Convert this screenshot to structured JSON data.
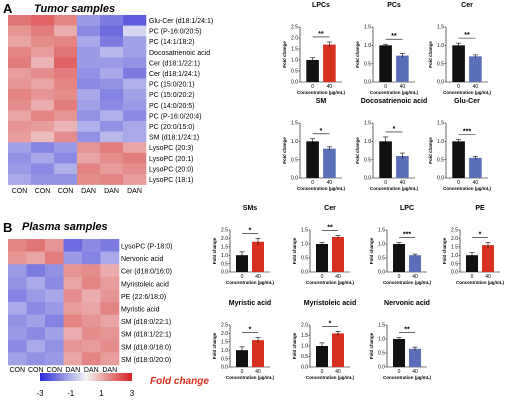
{
  "panelA": {
    "letter": "A",
    "title": "Tumor samples",
    "heatmap": {
      "rows": [
        "Glu-Cer (d18:1/24:1)",
        "PC (P-16:0/20:5)",
        "PC (14:1/18:2)",
        "Docosatrienoic acid",
        "Cer (d18:1/22:1)",
        "Cer (d18:1/24:1)",
        "PC (15:0/20:1)",
        "PC (15:0/20:2)",
        "PC (14:0/20:5)",
        "PC (P-16:0/20:4)",
        "PC (20:0/15:0)",
        "SM (d18:1/24:1)",
        "LysoPC (20:3)",
        "LysoPC (20:1)",
        "LysoPC (20:0)",
        "LysoPC (18:1)"
      ],
      "columns": [
        "CON",
        "CON",
        "CON",
        "DAN",
        "DAN",
        "DAN"
      ],
      "values": [
        [
          1.6,
          1.8,
          1.4,
          -1.2,
          -1.6,
          -2.0
        ],
        [
          1.2,
          1.5,
          0.9,
          -1.4,
          -1.8,
          -0.4
        ],
        [
          1.0,
          1.3,
          1.4,
          -1.0,
          -1.6,
          -1.1
        ],
        [
          1.4,
          1.1,
          1.6,
          -1.2,
          -0.8,
          -1.1
        ],
        [
          1.5,
          0.8,
          1.8,
          -1.2,
          -1.2,
          -1.3
        ],
        [
          1.1,
          1.3,
          1.5,
          -1.3,
          -1.0,
          -1.6
        ],
        [
          1.2,
          1.0,
          1.4,
          -1.4,
          -1.3,
          -0.9
        ],
        [
          1.4,
          1.2,
          1.3,
          -1.0,
          -1.5,
          -1.1
        ],
        [
          1.3,
          0.9,
          1.5,
          -1.1,
          -1.4,
          -1.2
        ],
        [
          1.0,
          1.4,
          1.2,
          -1.3,
          -0.9,
          -1.4
        ],
        [
          1.2,
          1.1,
          0.8,
          -0.9,
          -1.3,
          -1.0
        ],
        [
          1.1,
          0.7,
          1.3,
          -1.3,
          -0.8,
          -1.0
        ],
        [
          -1.1,
          -1.5,
          -1.2,
          1.2,
          1.5,
          1.0
        ],
        [
          -1.3,
          -1.0,
          -1.4,
          1.0,
          1.3,
          1.5
        ],
        [
          -1.2,
          -1.4,
          -0.9,
          1.4,
          1.1,
          1.3
        ],
        [
          -1.0,
          -1.3,
          -1.3,
          1.3,
          1.4,
          1.1
        ]
      ]
    },
    "bars": [
      {
        "title": "LPCs",
        "ctrl": 1.0,
        "ctrl_err": 0.1,
        "treat": 1.7,
        "treat_err": 0.12,
        "ymax": 2.5,
        "ticks": [
          "0.0",
          "0.5",
          "1.0",
          "1.5",
          "2.0",
          "2.5"
        ],
        "sig": "**",
        "treat_color": "#d7301f"
      },
      {
        "title": "PCs",
        "ctrl": 1.0,
        "ctrl_err": 0.03,
        "treat": 0.72,
        "treat_err": 0.06,
        "ymax": 1.5,
        "ticks": [
          "0.0",
          "0.5",
          "1.0",
          "1.5"
        ],
        "sig": "**",
        "treat_color": "#5b6fb8"
      },
      {
        "title": "Cer",
        "ctrl": 1.0,
        "ctrl_err": 0.06,
        "treat": 0.7,
        "treat_err": 0.04,
        "ymax": 1.5,
        "ticks": [
          "0.0",
          "0.5",
          "1.0",
          "1.5"
        ],
        "sig": "**",
        "treat_color": "#5b6fb8"
      },
      {
        "title": "SM",
        "ctrl": 1.0,
        "ctrl_err": 0.07,
        "treat": 0.8,
        "treat_err": 0.05,
        "ymax": 1.5,
        "ticks": [
          "0.0",
          "0.5",
          "1.0",
          "1.5"
        ],
        "sig": "*",
        "treat_color": "#5b6fb8"
      },
      {
        "title": "Docosatrienoic acid",
        "ctrl": 1.0,
        "ctrl_err": 0.12,
        "treat": 0.6,
        "treat_err": 0.08,
        "ymax": 1.5,
        "ticks": [
          "0.0",
          "0.5",
          "1.0",
          "1.5"
        ],
        "sig": "*",
        "treat_color": "#5b6fb8"
      },
      {
        "title": "Glu-Cer",
        "ctrl": 1.0,
        "ctrl_err": 0.05,
        "treat": 0.55,
        "treat_err": 0.04,
        "ymax": 1.5,
        "ticks": [
          "0.0",
          "0.5",
          "1.0",
          "1.5"
        ],
        "sig": "***",
        "treat_color": "#5b6fb8"
      }
    ]
  },
  "panelB": {
    "letter": "B",
    "title": "Plasma samples",
    "heatmap": {
      "rows": [
        "LysoPC (P-18:0)",
        "Nervonic acid",
        "Cer (d18:0/16:0)",
        "Myristoleic acid",
        "PE (22:6/18:0)",
        "Myristic acid",
        "SM (d18:0/22:1)",
        "SM (d18:1/22:1)",
        "SM (d18:0/18:0)",
        "SM (d18:0/20:0)"
      ],
      "columns": [
        "CON",
        "CON",
        "CON",
        "DAN",
        "DAN",
        "DAN"
      ],
      "values": [
        [
          1.4,
          1.6,
          1.2,
          -1.8,
          -1.4,
          -1.6
        ],
        [
          1.2,
          1.0,
          1.5,
          -1.2,
          -1.5,
          -1.0
        ],
        [
          -1.2,
          -1.6,
          -1.3,
          1.2,
          1.3,
          0.9
        ],
        [
          -1.3,
          -1.0,
          -1.4,
          1.0,
          1.4,
          1.1
        ],
        [
          -1.5,
          -1.2,
          -1.0,
          1.3,
          0.9,
          1.2
        ],
        [
          -1.0,
          -1.4,
          -1.2,
          1.1,
          1.0,
          1.4
        ],
        [
          -1.3,
          -1.1,
          -1.5,
          1.4,
          1.2,
          1.0
        ],
        [
          -1.2,
          -1.4,
          -1.1,
          0.9,
          1.3,
          1.2
        ],
        [
          -1.4,
          -1.0,
          -1.3,
          1.2,
          1.1,
          1.3
        ],
        [
          -1.1,
          -1.3,
          -1.2,
          1.0,
          1.4,
          1.1
        ]
      ]
    },
    "bars": [
      {
        "title": "SMs",
        "ctrl": 1.0,
        "ctrl_err": 0.2,
        "treat": 1.8,
        "treat_err": 0.2,
        "ymax": 2.5,
        "ticks": [
          "0.0",
          "0.5",
          "1.0",
          "1.5",
          "2.0",
          "2.5"
        ],
        "sig": "*",
        "treat_color": "#d7301f"
      },
      {
        "title": "Cer",
        "ctrl": 1.0,
        "ctrl_err": 0.05,
        "treat": 1.25,
        "treat_err": 0.05,
        "ymax": 1.5,
        "ticks": [
          "0.0",
          "0.5",
          "1.0",
          "1.5"
        ],
        "sig": "**",
        "treat_color": "#d7301f"
      },
      {
        "title": "LPC",
        "ctrl": 1.0,
        "ctrl_err": 0.05,
        "treat": 0.6,
        "treat_err": 0.04,
        "ymax": 1.5,
        "ticks": [
          "0.0",
          "0.5",
          "1.0",
          "1.5"
        ],
        "sig": "***",
        "treat_color": "#5b6fb8"
      },
      {
        "title": "PE",
        "ctrl": 1.0,
        "ctrl_err": 0.15,
        "treat": 1.6,
        "treat_err": 0.15,
        "ymax": 2.5,
        "ticks": [
          "0.0",
          "0.5",
          "1.0",
          "1.5",
          "2.0",
          "2.5"
        ],
        "sig": "*",
        "treat_color": "#d7301f"
      },
      {
        "title": "Myristic acid",
        "ctrl": 1.0,
        "ctrl_err": 0.2,
        "treat": 1.6,
        "treat_err": 0.15,
        "ymax": 2.5,
        "ticks": [
          "0.0",
          "0.5",
          "1.0",
          "1.5",
          "2.0",
          "2.5"
        ],
        "sig": "*",
        "treat_color": "#d7301f"
      },
      {
        "title": "Myristoleic acid",
        "ctrl": 1.0,
        "ctrl_err": 0.15,
        "treat": 1.6,
        "treat_err": 0.1,
        "ymax": 2.0,
        "ticks": [
          "0.0",
          "0.5",
          "1.0",
          "1.5",
          "2.0"
        ],
        "sig": "*",
        "treat_color": "#d7301f"
      },
      {
        "title": "Nervonic acid",
        "ctrl": 1.0,
        "ctrl_err": 0.05,
        "treat": 0.65,
        "treat_err": 0.06,
        "ymax": 1.5,
        "ticks": [
          "0.0",
          "0.5",
          "1.0",
          "1.5"
        ],
        "sig": "**",
        "treat_color": "#5b6fb8"
      }
    ]
  },
  "common": {
    "xticks": [
      "0",
      "40"
    ],
    "xlabel": "Concentration (µg/mL)",
    "ylabel": "Fold change",
    "ctrl_color": "#111111"
  },
  "legend": {
    "ticks": [
      "-3",
      "-1",
      "1",
      "3"
    ],
    "title": "Fold change",
    "low_color": "#2b2bd6",
    "mid_color": "#f4f4f4",
    "high_color": "#d61f1f"
  }
}
